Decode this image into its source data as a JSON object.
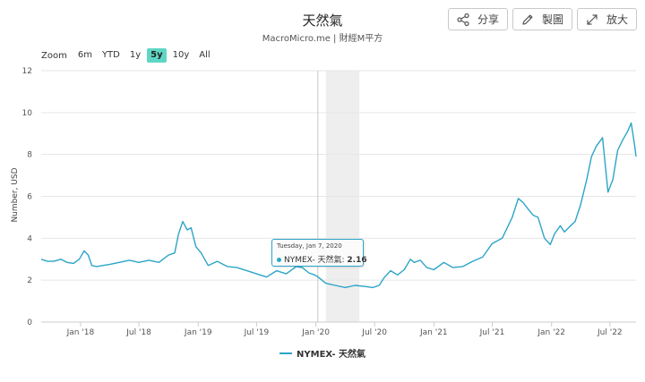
{
  "header": {
    "title": "天然氣",
    "subtitle": "MacroMicro.me | 財經M平方"
  },
  "toolbar": {
    "share_label": "分享",
    "chart_label": "製圖",
    "expand_label": "放大"
  },
  "zoom": {
    "label": "Zoom",
    "options": [
      "6m",
      "YTD",
      "1y",
      "5y",
      "10y",
      "All"
    ],
    "active": "5y"
  },
  "tooltip": {
    "date": "Tuesday, Jan 7, 2020",
    "series": "NYMEX- 天然氣",
    "value": "2.16"
  },
  "colors": {
    "series": "#2ca5c7",
    "active_zoom": "#5fd6c5",
    "shade": "#eeeeee"
  },
  "chart_data": {
    "type": "line",
    "title": "天然氣",
    "xlabel": "",
    "ylabel": "Number, USD",
    "ylim": [
      0,
      12
    ],
    "yticks": [
      0,
      2,
      4,
      6,
      8,
      10,
      12
    ],
    "xtick_labels": [
      "Jan '18",
      "Jul '18",
      "Jan '19",
      "Jul '19",
      "Jan '20",
      "Jul '20",
      "Jan '21",
      "Jul '21",
      "Jan '22",
      "Jul '22"
    ],
    "xtick_dates": [
      "2018-01-01",
      "2018-07-01",
      "2019-01-01",
      "2019-07-01",
      "2020-01-01",
      "2020-07-01",
      "2021-01-01",
      "2021-07-01",
      "2022-01-01",
      "2022-07-01"
    ],
    "xlim": [
      "2017-09-01",
      "2022-09-20"
    ],
    "shaded_region": [
      "2020-02-01",
      "2020-05-15"
    ],
    "crosshair_date": "2020-01-07",
    "grid": true,
    "legend": "bottom",
    "series": [
      {
        "name": "NYMEX- 天然氣",
        "x": [
          "2017-09-01",
          "2017-09-20",
          "2017-10-10",
          "2017-11-01",
          "2017-11-20",
          "2017-12-10",
          "2017-12-28",
          "2018-01-12",
          "2018-01-25",
          "2018-02-05",
          "2018-02-20",
          "2018-03-10",
          "2018-04-01",
          "2018-05-01",
          "2018-06-01",
          "2018-07-01",
          "2018-08-01",
          "2018-09-01",
          "2018-10-01",
          "2018-10-20",
          "2018-11-01",
          "2018-11-14",
          "2018-11-28",
          "2018-12-10",
          "2018-12-25",
          "2019-01-10",
          "2019-02-01",
          "2019-03-01",
          "2019-04-01",
          "2019-05-01",
          "2019-06-01",
          "2019-07-01",
          "2019-08-01",
          "2019-09-01",
          "2019-10-01",
          "2019-11-01",
          "2019-11-20",
          "2019-12-10",
          "2019-12-28",
          "2020-01-07",
          "2020-02-01",
          "2020-03-01",
          "2020-04-01",
          "2020-05-01",
          "2020-06-01",
          "2020-06-25",
          "2020-07-15",
          "2020-08-01",
          "2020-08-20",
          "2020-09-10",
          "2020-10-01",
          "2020-10-20",
          "2020-11-01",
          "2020-11-20",
          "2020-12-10",
          "2021-01-01",
          "2021-02-01",
          "2021-03-01",
          "2021-04-01",
          "2021-05-01",
          "2021-06-01",
          "2021-07-01",
          "2021-08-01",
          "2021-09-01",
          "2021-09-20",
          "2021-10-05",
          "2021-10-20",
          "2021-11-05",
          "2021-11-20",
          "2021-12-10",
          "2021-12-28",
          "2022-01-10",
          "2022-01-28",
          "2022-02-10",
          "2022-03-01",
          "2022-03-15",
          "2022-04-01",
          "2022-04-20",
          "2022-05-05",
          "2022-05-20",
          "2022-06-08",
          "2022-06-25",
          "2022-07-10",
          "2022-07-25",
          "2022-08-10",
          "2022-08-25",
          "2022-09-05",
          "2022-09-15",
          "2022-09-20"
        ],
        "values": [
          3.0,
          2.9,
          2.9,
          3.0,
          2.85,
          2.8,
          3.0,
          3.4,
          3.2,
          2.7,
          2.65,
          2.7,
          2.75,
          2.85,
          2.95,
          2.85,
          2.95,
          2.85,
          3.2,
          3.3,
          4.2,
          4.8,
          4.4,
          4.5,
          3.6,
          3.3,
          2.7,
          2.9,
          2.65,
          2.6,
          2.45,
          2.3,
          2.15,
          2.45,
          2.3,
          2.65,
          2.6,
          2.35,
          2.25,
          2.16,
          1.85,
          1.75,
          1.65,
          1.75,
          1.7,
          1.65,
          1.75,
          2.15,
          2.45,
          2.25,
          2.5,
          3.0,
          2.85,
          2.95,
          2.6,
          2.5,
          2.85,
          2.6,
          2.65,
          2.9,
          3.1,
          3.75,
          4.0,
          5.0,
          5.9,
          5.7,
          5.4,
          5.1,
          5.0,
          4.0,
          3.7,
          4.2,
          4.6,
          4.3,
          4.6,
          4.8,
          5.6,
          6.8,
          7.9,
          8.4,
          8.8,
          6.2,
          6.8,
          8.2,
          8.7,
          9.1,
          9.5,
          8.5,
          7.9
        ]
      }
    ]
  }
}
